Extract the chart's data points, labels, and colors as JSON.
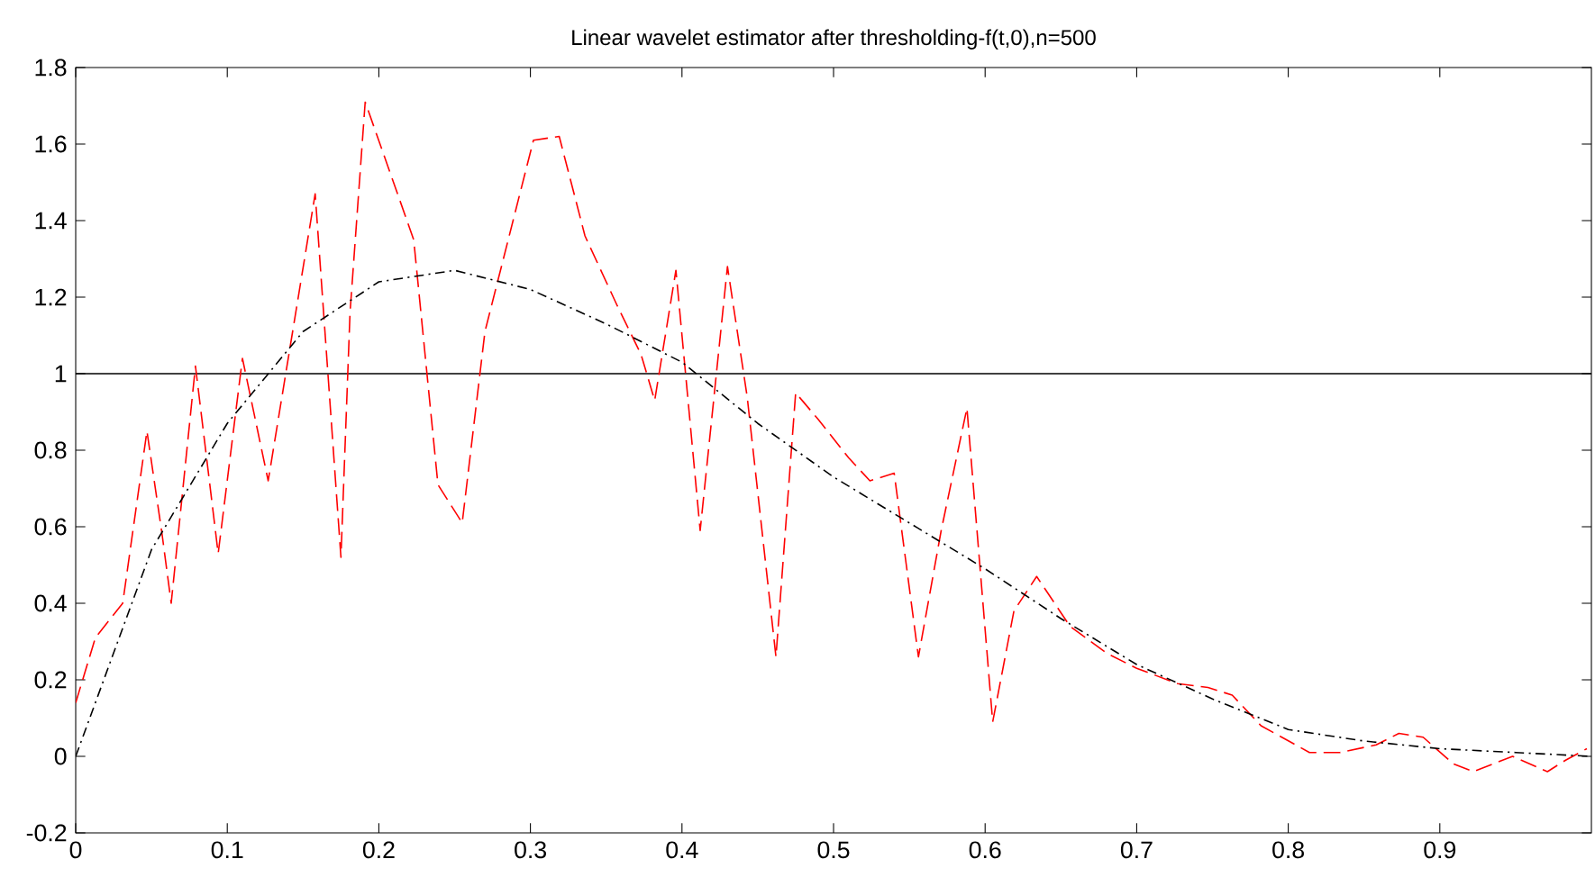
{
  "chart_data": {
    "type": "line",
    "title": "Linear wavelet estimator after thresholding-f(t,0),n=500",
    "xlim": [
      0,
      1
    ],
    "ylim": [
      -0.2,
      1.8
    ],
    "xticks": [
      0,
      0.1,
      0.2,
      0.3,
      0.4,
      0.5,
      0.6,
      0.7,
      0.8,
      0.9
    ],
    "yticks": [
      -0.2,
      0,
      0.2,
      0.4,
      0.6,
      0.8,
      1,
      1.2,
      1.4,
      1.6,
      1.8
    ],
    "grid": false,
    "ref_lines": [
      {
        "axis": "y",
        "value": 1,
        "color": "#000000",
        "line_style": "solid"
      }
    ],
    "series": [
      {
        "color": "#ff0000",
        "line_style": "dashed",
        "x": [
          0,
          0.013,
          0.031,
          0.047,
          0.057,
          0.063,
          0.079,
          0.094,
          0.11,
          0.127,
          0.158,
          0.175,
          0.181,
          0.191,
          0.223,
          0.239,
          0.255,
          0.27,
          0.302,
          0.319,
          0.336,
          0.357,
          0.373,
          0.382,
          0.396,
          0.412,
          0.43,
          0.443,
          0.462,
          0.475,
          0.49,
          0.51,
          0.524,
          0.54,
          0.556,
          0.571,
          0.588,
          0.605,
          0.619,
          0.634,
          0.656,
          0.68,
          0.7,
          0.727,
          0.747,
          0.763,
          0.782,
          0.814,
          0.834,
          0.858,
          0.873,
          0.889,
          0.909,
          0.922,
          0.948,
          0.971,
          0.983,
          0.997
        ],
        "values": [
          0.14,
          0.31,
          0.4,
          0.85,
          0.58,
          0.4,
          1.02,
          0.53,
          1.04,
          0.72,
          1.47,
          0.52,
          1.16,
          1.71,
          1.35,
          0.71,
          0.61,
          1.11,
          1.61,
          1.62,
          1.36,
          1.18,
          1.05,
          0.93,
          1.27,
          0.59,
          1.28,
          0.94,
          0.26,
          0.95,
          0.88,
          0.78,
          0.72,
          0.74,
          0.26,
          0.59,
          0.91,
          0.09,
          0.38,
          0.47,
          0.34,
          0.27,
          0.23,
          0.19,
          0.18,
          0.16,
          0.08,
          0.01,
          0.01,
          0.03,
          0.06,
          0.05,
          -0.02,
          -0.04,
          0,
          -0.04,
          -0.01,
          0.02
        ]
      },
      {
        "color": "#000000",
        "line_style": "dashdot",
        "x": [
          0,
          0.05,
          0.1,
          0.15,
          0.2,
          0.25,
          0.3,
          0.35,
          0.4,
          0.45,
          0.5,
          0.55,
          0.6,
          0.65,
          0.7,
          0.75,
          0.8,
          0.85,
          0.9,
          0.95,
          1.0
        ],
        "values": [
          0,
          0.54,
          0.87,
          1.11,
          1.24,
          1.27,
          1.22,
          1.13,
          1.03,
          0.87,
          0.73,
          0.61,
          0.49,
          0.36,
          0.24,
          0.15,
          0.07,
          0.04,
          0.02,
          0.01,
          0
        ]
      }
    ]
  }
}
